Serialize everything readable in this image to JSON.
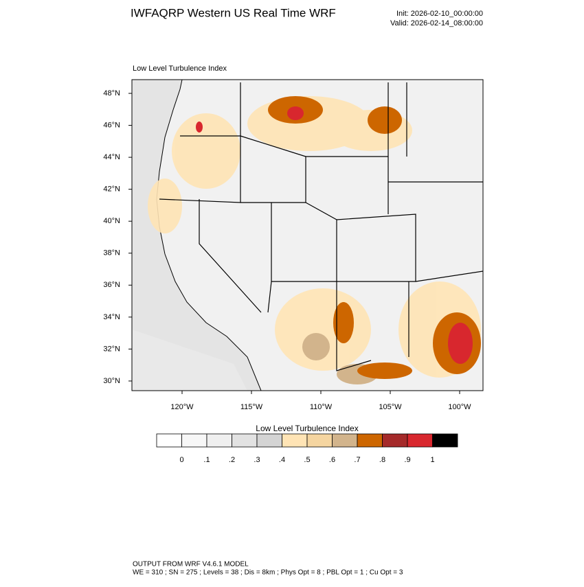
{
  "header": {
    "title": "IWFAQRP Western US Real Time WRF",
    "init": "Init: 2026-02-10_00:00:00",
    "valid": "Valid: 2026-02-14_08:00:00"
  },
  "map": {
    "title": "Low Level Turbulence Index",
    "lat_labels": [
      "48°N",
      "46°N",
      "44°N",
      "42°N",
      "40°N",
      "38°N",
      "36°N",
      "34°N",
      "32°N",
      "30°N"
    ],
    "lon_labels": [
      "120°W",
      "115°W",
      "110°W",
      "105°W",
      "100°W"
    ]
  },
  "colorbar": {
    "title": "Low Level Turbulence Index",
    "colors": [
      "#ffffff",
      "#f7f7f7",
      "#efefef",
      "#e2e2e2",
      "#d4d4d4",
      "#ffe4b5",
      "#f5d5a0",
      "#d2b48c",
      "#cd6600",
      "#a52a2a",
      "#d8272e",
      "#000000"
    ],
    "labels": [
      "0",
      ".1",
      ".2",
      ".3",
      ".4",
      ".5",
      ".6",
      ".7",
      ".8",
      ".9",
      "1"
    ]
  },
  "footer": {
    "line1": "OUTPUT FROM WRF V4.6.1 MODEL",
    "line2": "WE = 310 ; SN = 275 ; Levels = 38 ; Dis = 8km ; Phys Opt = 8 ; PBL Opt = 1 ; Cu Opt = 3"
  }
}
